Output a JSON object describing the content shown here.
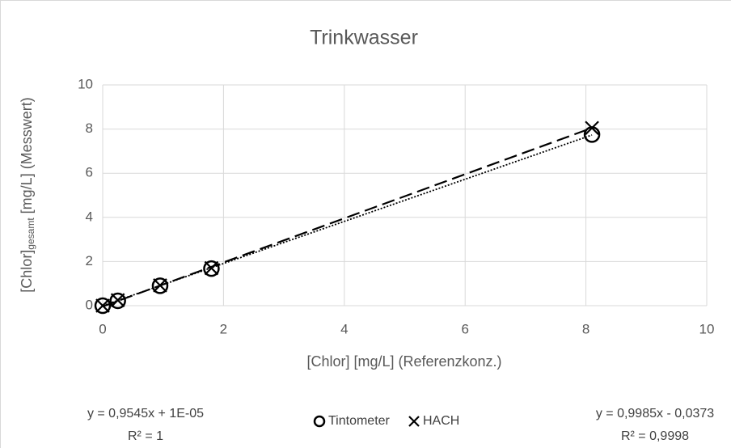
{
  "chart_data": {
    "type": "scatter",
    "title": "Trinkwasser",
    "xlabel": "[Chlor] [mg/L] (Referenzkonz.)",
    "ylabel": {
      "main": "[Chlor]",
      "sub": "gesamt",
      "rest": " [mg/L] (Messwert)"
    },
    "xlim": [
      0,
      10
    ],
    "xticks": [
      0,
      2,
      4,
      6,
      8,
      10
    ],
    "ylim": [
      0,
      10
    ],
    "yticks": [
      0,
      2,
      4,
      6,
      8,
      10
    ],
    "grid": true,
    "legend": "bottom",
    "series": [
      {
        "name": "Tintometer",
        "marker": "circle",
        "color": "#000000",
        "x": [
          0,
          0.25,
          0.95,
          1.8,
          8.1
        ],
        "values": [
          0,
          0.22,
          0.9,
          1.68,
          7.75
        ],
        "trendline": {
          "slope": 0.9545,
          "intercept": 1e-05,
          "dash": "dot",
          "label": "y = 0,9545x + 1E-05",
          "r2_label": "R² = 1"
        }
      },
      {
        "name": "HACH",
        "marker": "cross",
        "color": "#000000",
        "x": [
          0,
          0.25,
          0.95,
          1.8,
          8.1
        ],
        "values": [
          0,
          0.25,
          0.92,
          1.7,
          8.05
        ],
        "trendline": {
          "slope": 0.9985,
          "intercept": -0.0373,
          "dash": "dash",
          "label": "y = 0,9985x - 0,0373",
          "r2_label": "R² = 0,9998"
        }
      }
    ]
  }
}
